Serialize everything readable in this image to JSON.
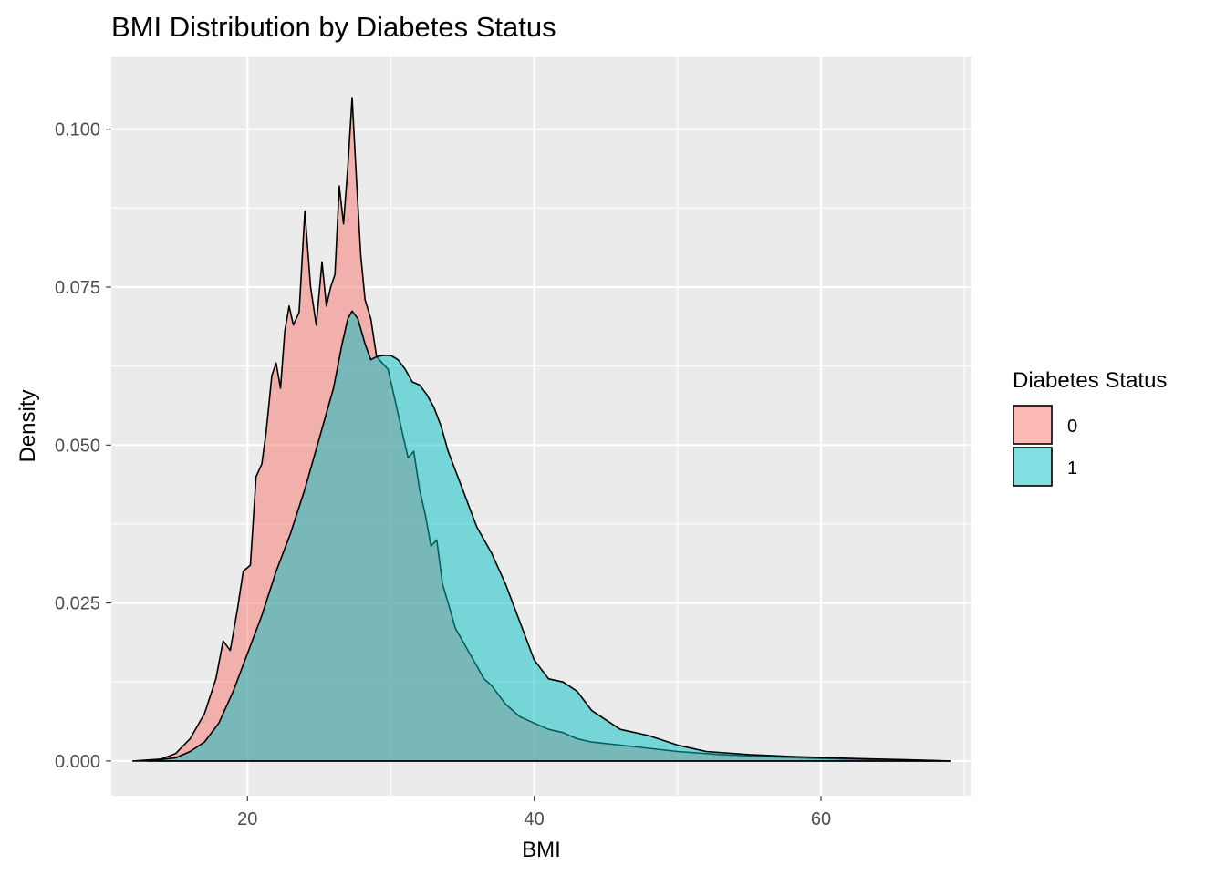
{
  "chart_data": {
    "type": "area",
    "subtype": "density",
    "title": "BMI Distribution by Diabetes Status",
    "xlabel": "BMI",
    "ylabel": "Density",
    "xlim": [
      10.5,
      70.5
    ],
    "ylim": [
      -0.0055,
      0.1115
    ],
    "x_ticks": [
      20,
      40,
      60
    ],
    "x_tick_labels": [
      "20",
      "40",
      "60"
    ],
    "y_ticks": [
      0,
      0.025,
      0.05,
      0.075,
      0.1
    ],
    "y_tick_labels": [
      "0.000",
      "0.025",
      "0.050",
      "0.075",
      "0.100"
    ],
    "grid": true,
    "legend": {
      "title": "Diabetes Status",
      "position": "right"
    },
    "series": [
      {
        "name": "0",
        "color": "#F8766D",
        "points": [
          [
            12,
            0
          ],
          [
            14,
            0.0003
          ],
          [
            15,
            0.0012
          ],
          [
            16,
            0.0035
          ],
          [
            17,
            0.0075
          ],
          [
            17.8,
            0.013
          ],
          [
            18.3,
            0.019
          ],
          [
            18.8,
            0.0175
          ],
          [
            19.3,
            0.024
          ],
          [
            19.7,
            0.03
          ],
          [
            20.2,
            0.031
          ],
          [
            20.6,
            0.045
          ],
          [
            21,
            0.047
          ],
          [
            21.3,
            0.052
          ],
          [
            21.7,
            0.061
          ],
          [
            22,
            0.063
          ],
          [
            22.3,
            0.059
          ],
          [
            22.6,
            0.068
          ],
          [
            22.9,
            0.072
          ],
          [
            23.2,
            0.069
          ],
          [
            23.6,
            0.071
          ],
          [
            24,
            0.087
          ],
          [
            24.4,
            0.075
          ],
          [
            24.8,
            0.069
          ],
          [
            25.2,
            0.079
          ],
          [
            25.5,
            0.072
          ],
          [
            25.8,
            0.075
          ],
          [
            26.1,
            0.077
          ],
          [
            26.4,
            0.091
          ],
          [
            26.7,
            0.085
          ],
          [
            27,
            0.094
          ],
          [
            27.3,
            0.105
          ],
          [
            27.6,
            0.092
          ],
          [
            27.9,
            0.08
          ],
          [
            28.2,
            0.073
          ],
          [
            28.6,
            0.07
          ],
          [
            29,
            0.064
          ],
          [
            29.4,
            0.063
          ],
          [
            29.8,
            0.062
          ],
          [
            30,
            0.06
          ],
          [
            30.4,
            0.056
          ],
          [
            30.8,
            0.052
          ],
          [
            31.2,
            0.048
          ],
          [
            31.6,
            0.049
          ],
          [
            32,
            0.043
          ],
          [
            32.4,
            0.039
          ],
          [
            32.8,
            0.034
          ],
          [
            33.2,
            0.035
          ],
          [
            33.6,
            0.028
          ],
          [
            34,
            0.025
          ],
          [
            34.5,
            0.021
          ],
          [
            35,
            0.019
          ],
          [
            35.5,
            0.017
          ],
          [
            36,
            0.015
          ],
          [
            36.5,
            0.013
          ],
          [
            37,
            0.012
          ],
          [
            38,
            0.009
          ],
          [
            39,
            0.007
          ],
          [
            40,
            0.006
          ],
          [
            41,
            0.005
          ],
          [
            42,
            0.0045
          ],
          [
            43,
            0.0035
          ],
          [
            44,
            0.003
          ],
          [
            46,
            0.0025
          ],
          [
            48,
            0.002
          ],
          [
            50,
            0.0015
          ],
          [
            53,
            0.001
          ],
          [
            56,
            0.0007
          ],
          [
            60,
            0.0004
          ],
          [
            64,
            0.0002
          ],
          [
            69,
            0
          ]
        ]
      },
      {
        "name": "1",
        "color": "#00BFC4",
        "points": [
          [
            13,
            0
          ],
          [
            15,
            0.0005
          ],
          [
            16,
            0.0015
          ],
          [
            17,
            0.003
          ],
          [
            18,
            0.006
          ],
          [
            19,
            0.011
          ],
          [
            20,
            0.017
          ],
          [
            21,
            0.023
          ],
          [
            22,
            0.03
          ],
          [
            23,
            0.036
          ],
          [
            24,
            0.043
          ],
          [
            25,
            0.051
          ],
          [
            26,
            0.059
          ],
          [
            26.6,
            0.066
          ],
          [
            27,
            0.07
          ],
          [
            27.3,
            0.0712
          ],
          [
            27.7,
            0.07
          ],
          [
            28.2,
            0.066
          ],
          [
            28.6,
            0.0635
          ],
          [
            29,
            0.064
          ],
          [
            29.5,
            0.0642
          ],
          [
            30,
            0.0642
          ],
          [
            30.5,
            0.0635
          ],
          [
            31,
            0.062
          ],
          [
            31.5,
            0.06
          ],
          [
            32,
            0.0595
          ],
          [
            32.5,
            0.058
          ],
          [
            33,
            0.056
          ],
          [
            33.5,
            0.053
          ],
          [
            34,
            0.049
          ],
          [
            34.5,
            0.046
          ],
          [
            35,
            0.043
          ],
          [
            35.5,
            0.04
          ],
          [
            36,
            0.037
          ],
          [
            37,
            0.033
          ],
          [
            38,
            0.028
          ],
          [
            39,
            0.022
          ],
          [
            40,
            0.016
          ],
          [
            41,
            0.013
          ],
          [
            42,
            0.0125
          ],
          [
            43,
            0.011
          ],
          [
            44,
            0.008
          ],
          [
            45,
            0.0065
          ],
          [
            46,
            0.005
          ],
          [
            48,
            0.004
          ],
          [
            50,
            0.0025
          ],
          [
            52,
            0.0015
          ],
          [
            55,
            0.001
          ],
          [
            58,
            0.0007
          ],
          [
            62,
            0.0004
          ],
          [
            66,
            0.0002
          ],
          [
            69,
            0
          ]
        ]
      }
    ]
  }
}
